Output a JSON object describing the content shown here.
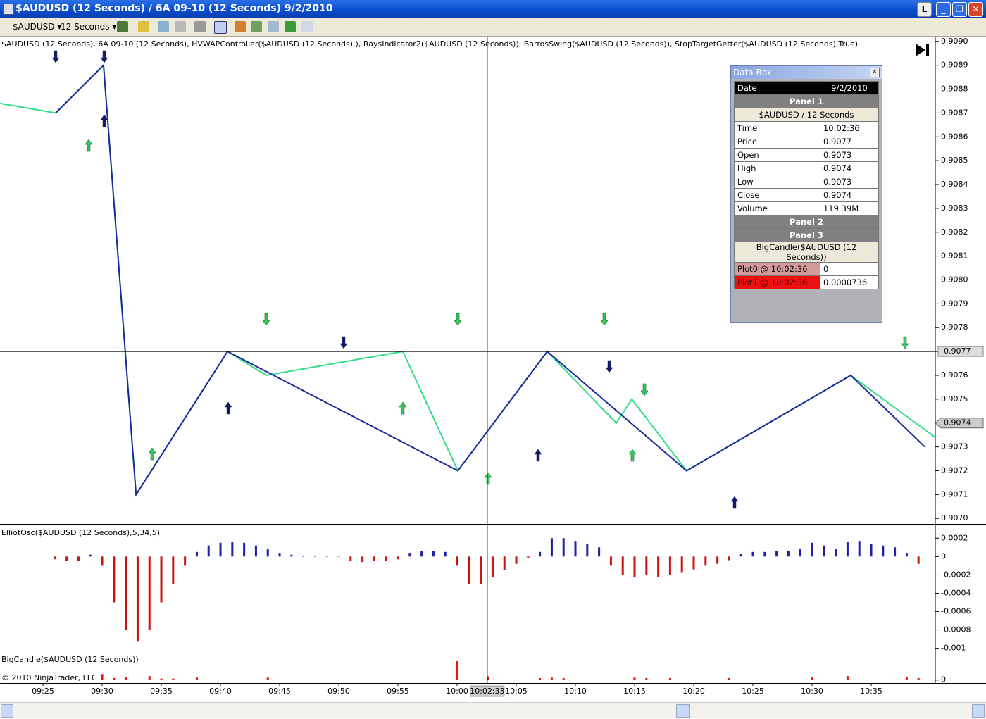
{
  "window": {
    "title": "$AUDUSD (12 Seconds) / 6A 09-10 (12 Seconds)  9/2/2010",
    "button": "L"
  },
  "toolbar": {
    "instrument": "$AUDUSD",
    "interval": "12 Seconds"
  },
  "time_axis": {
    "xlim": [
      "09:21:22",
      "10:40:25"
    ],
    "labels": [
      "09:25",
      "09:30",
      "09:35",
      "09:40",
      "09:45",
      "09:50",
      "09:55",
      "10:00",
      "10:05",
      "10:10",
      "10:15",
      "10:20",
      "10:25",
      "10:30",
      "10:35"
    ],
    "crosshair": "10:02:33"
  },
  "chart_data": [
    {
      "type": "line",
      "title": "$AUDUSD (12 Seconds), 6A 09-10 (12 Seconds), HVWAPController($AUDUSD (12 Seconds),), RaysIndicator2($AUDUSD (12 Seconds)), BarrosSwing($AUDUSD (12 Seconds)), StopTargetGetter($AUDUSD (12 Seconds),True)",
      "ylim": [
        0.90698,
        0.90902
      ],
      "yticks": [
        {
          "value": 0.909,
          "label": "0.9090"
        },
        0.9089,
        0.9088,
        0.9087,
        0.9086,
        0.9085,
        0.9084,
        0.9083,
        0.9082,
        0.9081,
        {
          "value": 0.908,
          "label": "0.9080"
        },
        0.9079,
        0.9078,
        0.9077,
        0.9076,
        0.9075,
        0.9074,
        0.9073,
        0.9072,
        0.9071,
        {
          "value": 0.907,
          "label": "0.9070"
        }
      ],
      "crosshair_price": 0.9077,
      "last_price": 0.9074,
      "series": [
        {
          "color": "#33dd88",
          "x": [
            "09:21:22",
            "09:26:04",
            "09:30:07",
            "09:32:52",
            "09:40:36",
            "09:43:52",
            "09:55:25",
            "10:00:04",
            "10:07:37",
            "10:13:27",
            "10:14:46",
            "10:19:24",
            "10:33:16",
            "10:40:25"
          ],
          "values": [
            0.90874,
            0.9087,
            0.9089,
            0.9071,
            0.9077,
            0.9076,
            0.9077,
            0.9072,
            0.9077,
            0.9074,
            0.9075,
            0.9072,
            0.9076,
            0.90734
          ]
        },
        {
          "color": "#1a2a9a",
          "x": [
            "09:26:04",
            "09:30:07",
            "09:32:52",
            "09:40:36",
            "10:00:04",
            "10:07:37",
            "10:19:24",
            "10:33:16",
            "10:39:32"
          ],
          "values": [
            0.9087,
            0.9089,
            0.9071,
            0.9077,
            0.9072,
            0.9077,
            0.9072,
            0.9076,
            0.9073
          ]
        }
      ]
    },
    {
      "type": "bar",
      "title": "ElliotOsc($AUDUSD (12 Seconds),5,34,5)",
      "ylim": [
        -0.00101,
        0.00034
      ],
      "yticks": [
        0.0002,
        0,
        -0.0002,
        -0.0004,
        -0.0006,
        -0.0008,
        -0.001
      ],
      "color": "#1f1fa8",
      "negative_color": "#cc1111",
      "x": [
        "09:26",
        "09:27",
        "09:28",
        "09:29",
        "09:30",
        "09:31",
        "09:32",
        "09:33",
        "09:34",
        "09:35",
        "09:36",
        "09:37",
        "09:38",
        "09:39",
        "09:40",
        "09:41",
        "09:42",
        "09:43",
        "09:44",
        "09:45",
        "09:46",
        "09:47",
        "09:48",
        "09:49",
        "09:50",
        "09:51",
        "09:52",
        "09:53",
        "09:54",
        "09:55",
        "09:56",
        "09:57",
        "09:58",
        "09:59",
        "10:00",
        "10:01",
        "10:02",
        "10:03",
        "10:04",
        "10:05",
        "10:06",
        "10:07",
        "10:08",
        "10:09",
        "10:10",
        "10:11",
        "10:12",
        "10:13",
        "10:14",
        "10:15",
        "10:16",
        "10:17",
        "10:18",
        "10:19",
        "10:20",
        "10:21",
        "10:22",
        "10:23",
        "10:24",
        "10:25",
        "10:26",
        "10:27",
        "10:28",
        "10:29",
        "10:30",
        "10:31",
        "10:32",
        "10:33",
        "10:34",
        "10:35",
        "10:36",
        "10:37",
        "10:38",
        "10:39"
      ],
      "values": [
        -3e-05,
        -5e-05,
        -5e-05,
        2e-05,
        -0.0001,
        -0.0005,
        -0.0008,
        -0.00092,
        -0.0008,
        -0.0005,
        -0.0003,
        -0.0001,
        5e-05,
        0.00012,
        0.00015,
        0.00016,
        0.00015,
        0.00012,
        8e-05,
        4e-05,
        2e-05,
        0,
        0,
        0,
        0,
        -5e-05,
        -6e-05,
        -5e-05,
        -5e-05,
        -3e-05,
        4e-05,
        6e-05,
        6e-05,
        5e-05,
        -0.0001,
        -0.0003,
        -0.0003,
        -0.00022,
        -0.00015,
        -8e-05,
        -2e-05,
        5e-05,
        0.0002,
        0.0002,
        0.00017,
        0.00014,
        0.0001,
        -0.0001,
        -0.0002,
        -0.00022,
        -0.0002,
        -0.00022,
        -0.0002,
        -0.00017,
        -0.00014,
        -0.0001,
        -8e-05,
        -4e-05,
        3e-05,
        5e-05,
        5e-05,
        6e-05,
        6e-05,
        8e-05,
        0.00015,
        0.00012,
        8e-05,
        0.00016,
        0.00017,
        0.00014,
        0.00012,
        0.0001,
        4e-05,
        -8e-05
      ]
    },
    {
      "type": "bar",
      "title": "BigCandle($AUDUSD (12 Seconds))",
      "copyright": "© 2010 NinjaTrader, LLC",
      "ylim": [
        -6e-05,
        0.00056
      ],
      "yticks": [
        0
      ],
      "color": "#ee1111",
      "negative_color": "#ee1111",
      "x": [
        "09:30",
        "09:31",
        "09:32",
        "09:34",
        "09:35",
        "09:36",
        "09:38",
        "09:44",
        "10:00",
        "10:02:36",
        "10:07",
        "10:08",
        "10:09",
        "10:15",
        "10:16",
        "10:18",
        "10:23",
        "10:30",
        "10:33",
        "10:38",
        "10:39"
      ],
      "values": [
        0.00012,
        4e-05,
        6e-05,
        8e-05,
        3e-05,
        3e-05,
        5e-05,
        5e-05,
        0.00038,
        7.36e-05,
        4e-05,
        5e-05,
        4e-05,
        5e-05,
        4e-05,
        4e-05,
        4e-05,
        6e-05,
        8e-05,
        6e-05,
        4e-05
      ]
    }
  ],
  "data_box": {
    "title": "Data Box",
    "date_label": "Date",
    "date": "9/2/2010",
    "panel1": "Panel 1",
    "series_label": "$AUDUSD / 12 Seconds",
    "rows": [
      [
        "Time",
        "10:02:36"
      ],
      [
        "Price",
        "0.9077"
      ],
      [
        "Open",
        "0.9073"
      ],
      [
        "High",
        "0.9074"
      ],
      [
        "Low",
        "0.9073"
      ],
      [
        "Close",
        "0.9074"
      ],
      [
        "Volume",
        "119.39M"
      ]
    ],
    "panel2": "Panel 2",
    "panel3": "Panel 3",
    "indicator": "BigCandle($AUDUSD (12 Seconds))",
    "plots": [
      [
        "Plot0 @ 10:02:36",
        "0"
      ],
      [
        "Plot1 @ 10:02:36",
        "0.0000736"
      ]
    ]
  }
}
